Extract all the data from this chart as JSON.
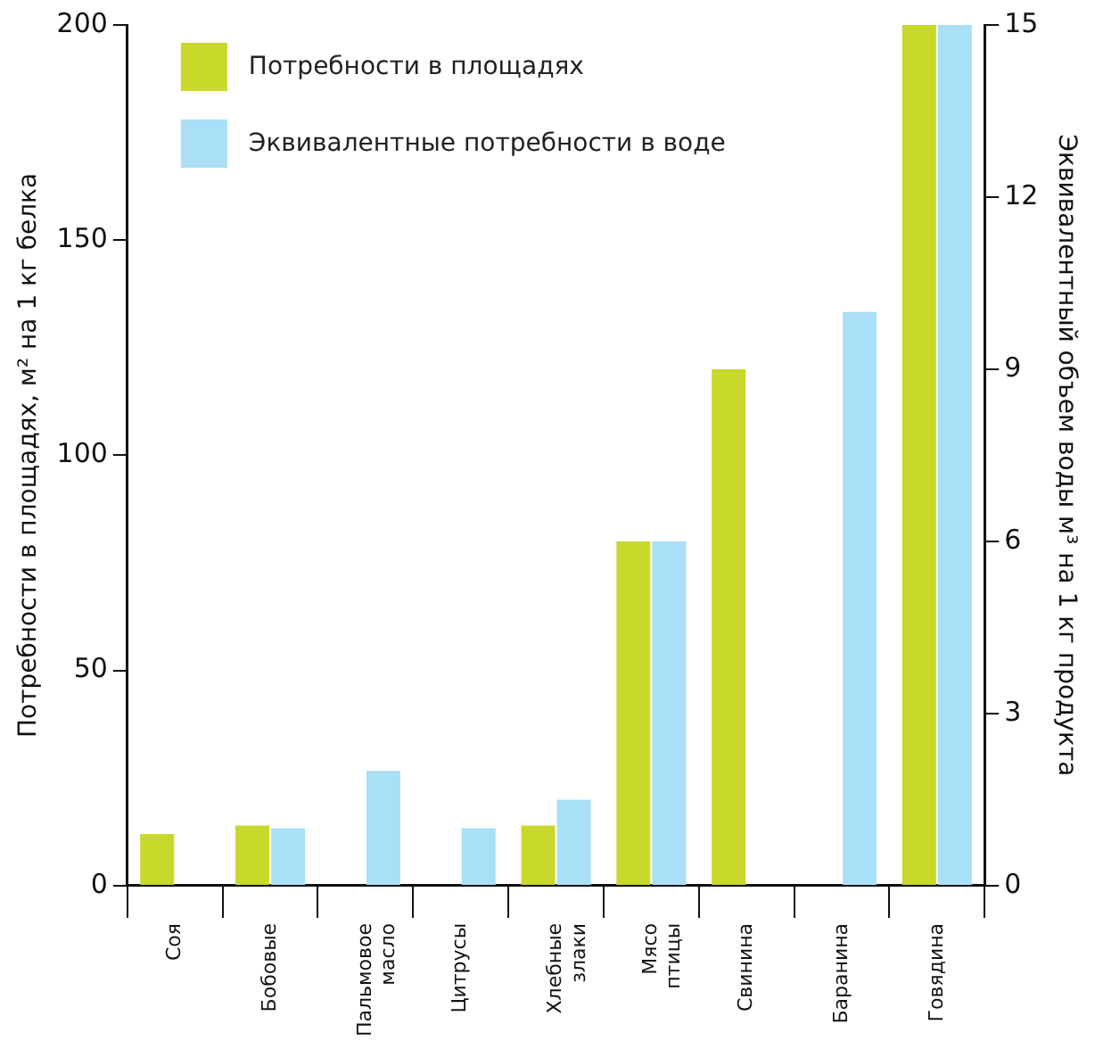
{
  "chart_data": {
    "type": "bar",
    "ylabel": "Потребности в площадях, м² на 1 кг белка",
    "y2label": "Эквивалентный объем воды м³ на 1 кг продукта",
    "categories": [
      "Соя",
      "Бобовые",
      "Пальмовое масло",
      "Цитрусы",
      "Хлебные злаки",
      "Мясо птицы",
      "Свинина",
      "Баранина",
      "Говядина"
    ],
    "series": [
      {
        "name": "Потребности в площадях",
        "color": "#c8d92b",
        "values": [
          12,
          14,
          null,
          null,
          14,
          80,
          120,
          null,
          200
        ]
      },
      {
        "name": "Эквивалентные потребности в воде",
        "color": "#aadff8",
        "axis": "y2",
        "values": [
          null,
          1,
          2,
          1,
          1.5,
          6,
          null,
          10,
          15
        ]
      }
    ],
    "ylim": [
      0,
      200
    ],
    "yticks": [
      0,
      50,
      100,
      150,
      200
    ],
    "y2lim": [
      0,
      15
    ],
    "y2ticks": [
      0,
      3,
      6,
      9,
      12,
      15
    ],
    "grid": false,
    "legend": "top left"
  }
}
